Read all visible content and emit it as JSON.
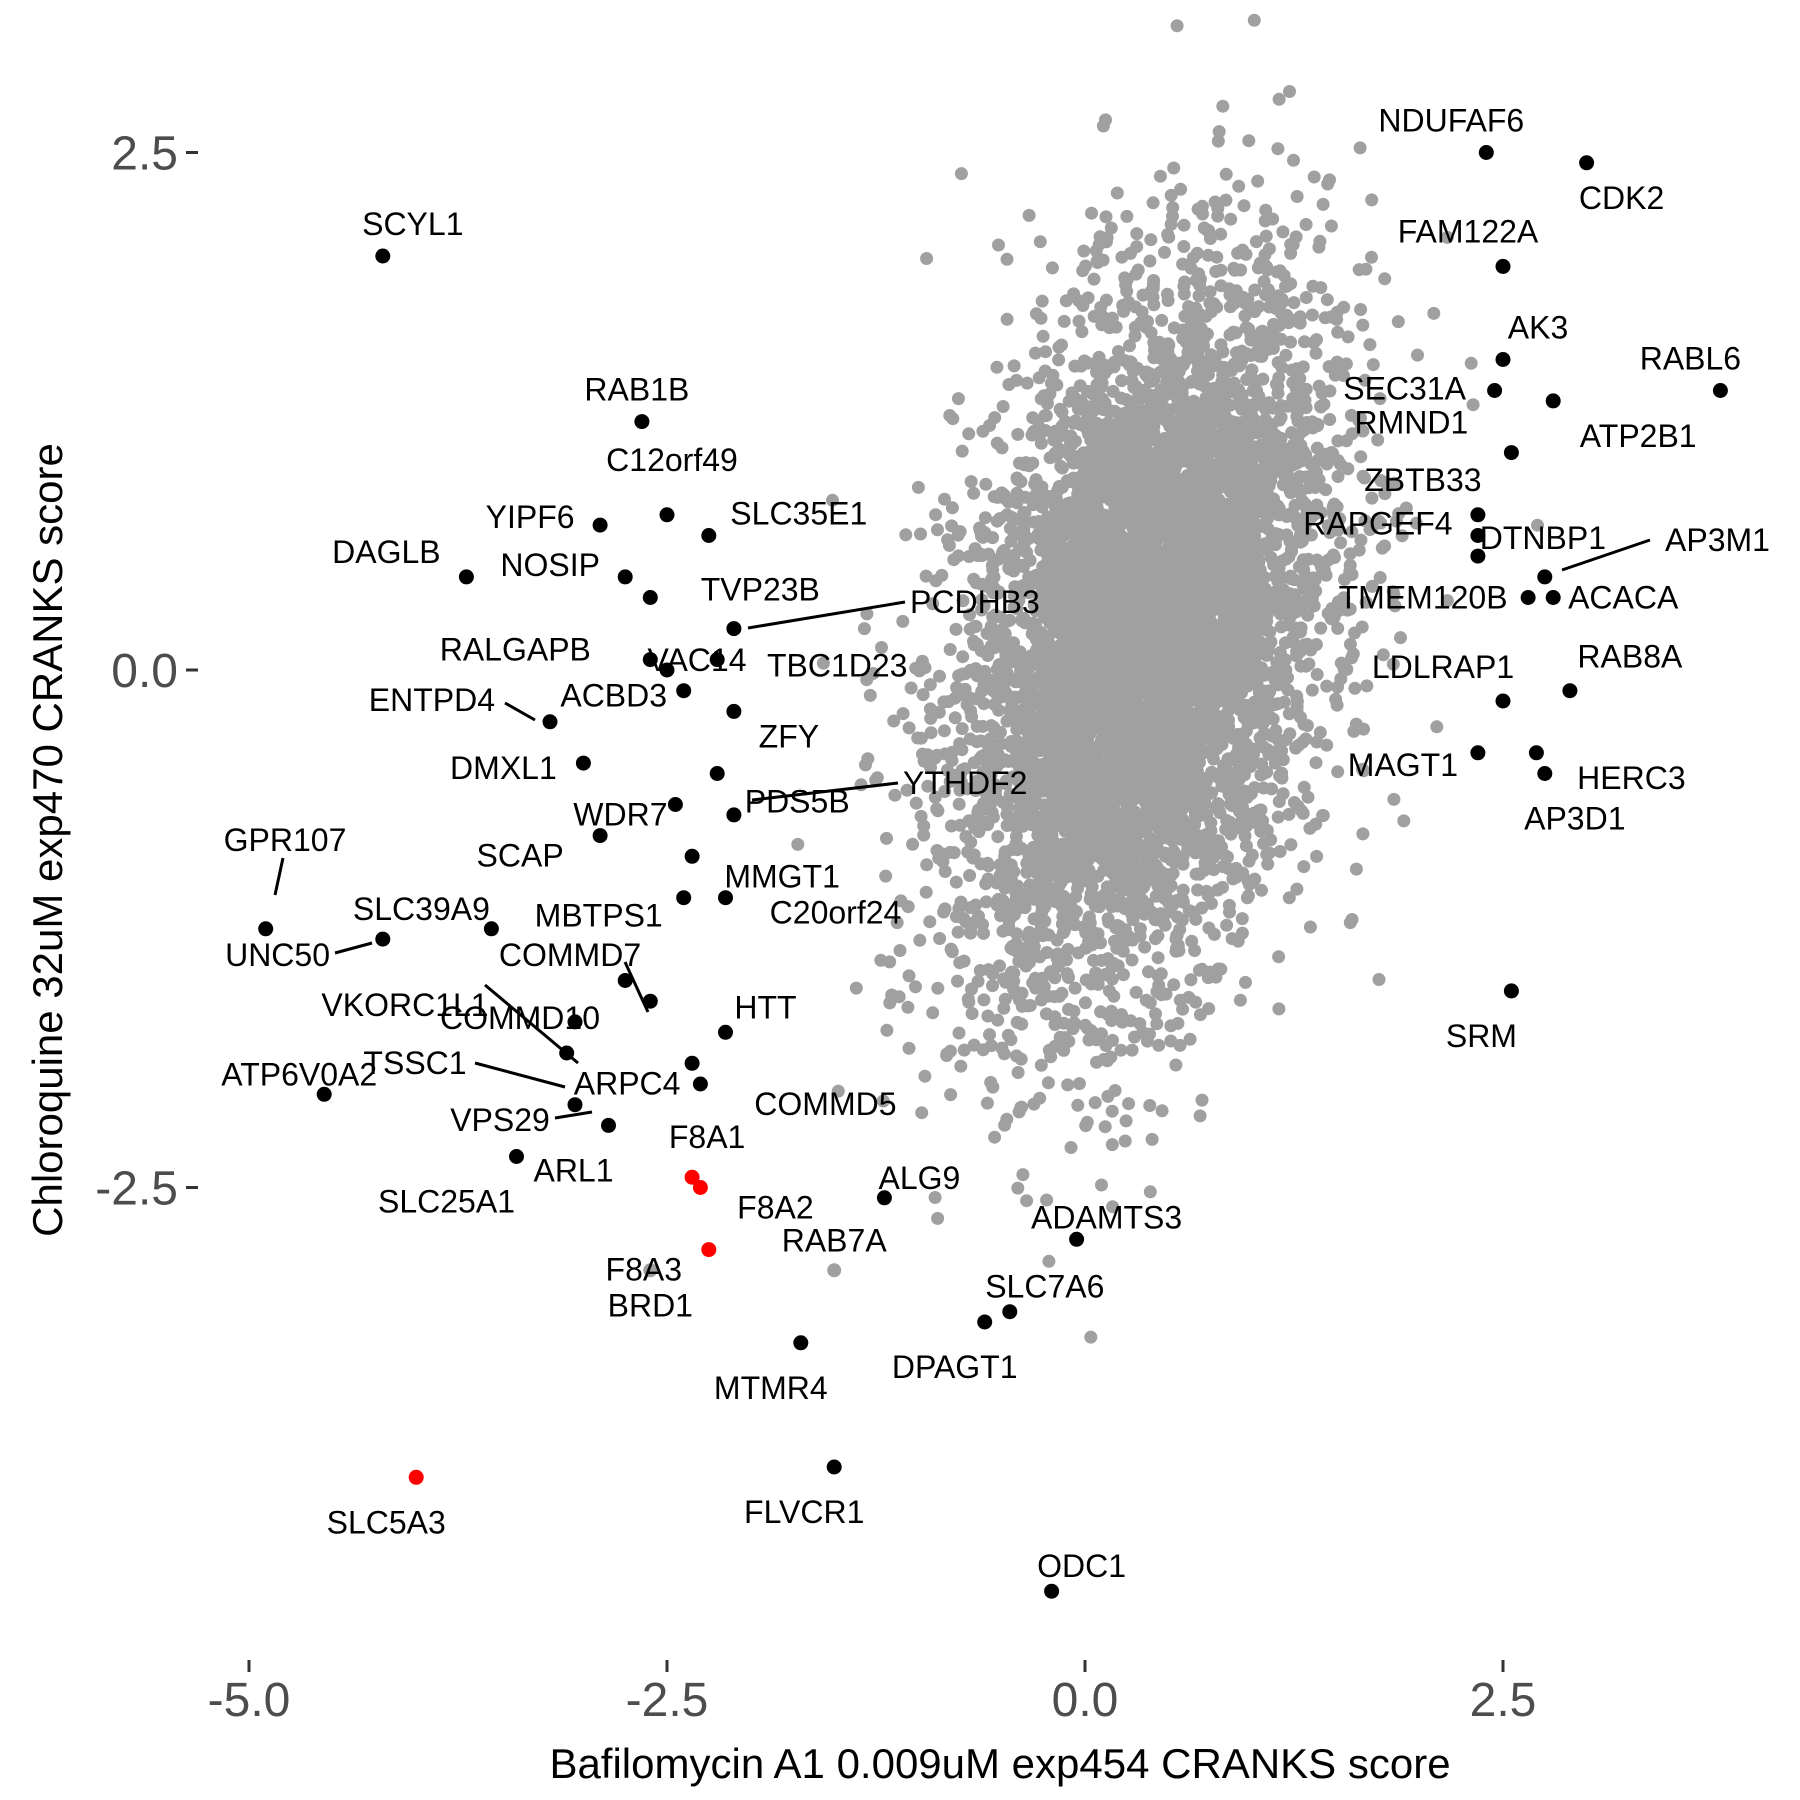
{
  "chart_data": {
    "type": "scatter",
    "title": "",
    "xlabel": "Bafilomycin A1 0.009uM exp454 CRANKS score",
    "ylabel": "Chloroquine 32uM exp470 CRANKS score",
    "xlim": [
      -5.1,
      3.7
    ],
    "ylim": [
      -4.7,
      3.2
    ],
    "x_ticks": [
      -5.0,
      -2.5,
      0.0,
      2.5
    ],
    "x_tick_labels": [
      "-5.0",
      "-2.5",
      "0.0",
      "2.5"
    ],
    "y_ticks": [
      2.5,
      0.0,
      -2.5
    ],
    "y_tick_labels": [
      "2.5",
      "0.0",
      "-2.5"
    ],
    "grid": false,
    "legend": "none",
    "colors": {
      "background": "#ffffff",
      "gray_points": "#a0a0a0",
      "highlight": "#000000",
      "special": "#ff0000"
    },
    "background_cloud": {
      "description_color": "gray",
      "n_points": 6000,
      "center": [
        0.35,
        0.15
      ],
      "sd": [
        0.55,
        0.85
      ],
      "correlation": 0.35
    },
    "labeled_points": [
      {
        "gene": "NDUFAF6",
        "x": 2.4,
        "y": 2.5,
        "color": "black"
      },
      {
        "gene": "CDK2",
        "x": 3.0,
        "y": 2.45,
        "color": "black"
      },
      {
        "gene": "SCYL1",
        "x": -4.2,
        "y": 2.0,
        "color": "black"
      },
      {
        "gene": "FAM122A",
        "x": 2.5,
        "y": 1.95,
        "color": "black"
      },
      {
        "gene": "AK3",
        "x": 2.5,
        "y": 1.5,
        "color": "black"
      },
      {
        "gene": "RABL6",
        "x": 3.8,
        "y": 1.35,
        "color": "black"
      },
      {
        "gene": "SEC31A",
        "x": 2.45,
        "y": 1.35,
        "color": "black"
      },
      {
        "gene": "ATP2B1",
        "x": 2.8,
        "y": 1.3,
        "color": "black"
      },
      {
        "gene": "RAB1B",
        "x": -2.65,
        "y": 1.2,
        "color": "black"
      },
      {
        "gene": "RMND1",
        "x": 2.55,
        "y": 1.05,
        "color": "black"
      },
      {
        "gene": "C12orf49",
        "x": -2.5,
        "y": 0.75,
        "color": "black"
      },
      {
        "gene": "ZBTB33",
        "x": 2.35,
        "y": 0.75,
        "color": "black"
      },
      {
        "gene": "YIPF6",
        "x": -2.9,
        "y": 0.7,
        "color": "black"
      },
      {
        "gene": "SLC35E1",
        "x": -2.25,
        "y": 0.65,
        "color": "black"
      },
      {
        "gene": "RAPGEF4",
        "x": 2.35,
        "y": 0.65,
        "color": "black"
      },
      {
        "gene": "DTNBP1",
        "x": 2.35,
        "y": 0.55,
        "color": "black"
      },
      {
        "gene": "AP3M1",
        "x": 2.75,
        "y": 0.45,
        "color": "black"
      },
      {
        "gene": "DAGLB",
        "x": -3.7,
        "y": 0.45,
        "color": "black"
      },
      {
        "gene": "NOSIP",
        "x": -2.75,
        "y": 0.45,
        "color": "black"
      },
      {
        "gene": "TVP23B",
        "x": -2.6,
        "y": 0.35,
        "color": "black"
      },
      {
        "gene": "TMEM120B",
        "x": 2.65,
        "y": 0.35,
        "color": "black"
      },
      {
        "gene": "ACACA",
        "x": 2.8,
        "y": 0.35,
        "color": "black"
      },
      {
        "gene": "PCDHB3",
        "x": -2.1,
        "y": 0.2,
        "color": "black"
      },
      {
        "gene": "RALGAPB",
        "x": -2.6,
        "y": 0.05,
        "color": "black"
      },
      {
        "gene": "VAC14",
        "x": -2.5,
        "y": 0.0,
        "color": "black"
      },
      {
        "gene": "TBC1D23",
        "x": -2.2,
        "y": 0.05,
        "color": "black"
      },
      {
        "gene": "LDLRAP1",
        "x": 2.5,
        "y": -0.15,
        "color": "black"
      },
      {
        "gene": "RAB8A",
        "x": 2.9,
        "y": -0.1,
        "color": "black"
      },
      {
        "gene": "ACBD3",
        "x": -2.4,
        "y": -0.1,
        "color": "black"
      },
      {
        "gene": "ENTPD4",
        "x": -3.2,
        "y": -0.25,
        "color": "black"
      },
      {
        "gene": "ZFY",
        "x": -2.1,
        "y": -0.2,
        "color": "black"
      },
      {
        "gene": "MAGT1",
        "x": 2.35,
        "y": -0.4,
        "color": "black"
      },
      {
        "gene": "HERC3",
        "x": 2.7,
        "y": -0.4,
        "color": "black"
      },
      {
        "gene": "DMXL1",
        "x": -3.0,
        "y": -0.45,
        "color": "black"
      },
      {
        "gene": "AP3D1",
        "x": 2.75,
        "y": -0.5,
        "color": "black"
      },
      {
        "gene": "PDS5B",
        "x": -2.2,
        "y": -0.5,
        "color": "black"
      },
      {
        "gene": "YTHDF2",
        "x": -2.1,
        "y": -0.7,
        "color": "black"
      },
      {
        "gene": "WDR7",
        "x": -2.45,
        "y": -0.65,
        "color": "black"
      },
      {
        "gene": "SCAP",
        "x": -2.9,
        "y": -0.8,
        "color": "black"
      },
      {
        "gene": "MMGT1",
        "x": -2.35,
        "y": -0.9,
        "color": "black"
      },
      {
        "gene": "GPR107",
        "x": -4.9,
        "y": -1.25,
        "color": "black"
      },
      {
        "gene": "SLC39A9",
        "x": -3.55,
        "y": -1.25,
        "color": "black"
      },
      {
        "gene": "MBTPS1",
        "x": -2.4,
        "y": -1.1,
        "color": "black"
      },
      {
        "gene": "C20orf24",
        "x": -2.15,
        "y": -1.1,
        "color": "black"
      },
      {
        "gene": "UNC50",
        "x": -4.2,
        "y": -1.3,
        "color": "black"
      },
      {
        "gene": "COMMD7",
        "x": -2.75,
        "y": -1.5,
        "color": "black"
      },
      {
        "gene": "VKORC1L1",
        "x": -3.05,
        "y": -1.7,
        "color": "black"
      },
      {
        "gene": "COMMD10",
        "x": -2.6,
        "y": -1.6,
        "color": "black"
      },
      {
        "gene": "HTT",
        "x": -2.15,
        "y": -1.75,
        "color": "black"
      },
      {
        "gene": "TSSC1",
        "x": -3.1,
        "y": -1.85,
        "color": "black"
      },
      {
        "gene": "ATP6V0A2",
        "x": -4.55,
        "y": -2.05,
        "color": "black"
      },
      {
        "gene": "ARPC4",
        "x": -2.35,
        "y": -1.9,
        "color": "black"
      },
      {
        "gene": "COMMD5",
        "x": -2.3,
        "y": -2.0,
        "color": "black"
      },
      {
        "gene": "VPS29",
        "x": -3.05,
        "y": -2.1,
        "color": "black"
      },
      {
        "gene": "ARL1",
        "x": -2.85,
        "y": -2.2,
        "color": "black"
      },
      {
        "gene": "SLC25A1",
        "x": -3.4,
        "y": -2.35,
        "color": "black"
      },
      {
        "gene": "ALG9",
        "x": -1.2,
        "y": -2.55,
        "color": "black"
      },
      {
        "gene": "ADAMTS3",
        "x": -0.05,
        "y": -2.75,
        "color": "black"
      },
      {
        "gene": "SLC7A6",
        "x": -0.45,
        "y": -3.1,
        "color": "black"
      },
      {
        "gene": "DPAGT1",
        "x": -0.6,
        "y": -3.15,
        "color": "black"
      },
      {
        "gene": "MTMR4",
        "x": -1.7,
        "y": -3.25,
        "color": "black"
      },
      {
        "gene": "FLVCR1",
        "x": -1.5,
        "y": -3.85,
        "color": "black"
      },
      {
        "gene": "ODC1",
        "x": -0.2,
        "y": -4.45,
        "color": "black"
      },
      {
        "gene": "SRM",
        "x": 2.55,
        "y": -1.55,
        "color": "black"
      },
      {
        "gene": "F8A1",
        "x": -2.35,
        "y": -2.45,
        "color": "red"
      },
      {
        "gene": "F8A2",
        "x": -2.3,
        "y": -2.5,
        "color": "red"
      },
      {
        "gene": "F8A3",
        "x": -2.25,
        "y": -2.8,
        "color": "red"
      },
      {
        "gene": "SLC5A3",
        "x": -4.0,
        "y": -3.9,
        "color": "red"
      },
      {
        "gene": "RAB7A",
        "x": -1.5,
        "y": -2.9,
        "color": "gray"
      },
      {
        "gene": "BRD1",
        "x": -2.6,
        "y": -2.9,
        "color": "gray"
      }
    ]
  }
}
